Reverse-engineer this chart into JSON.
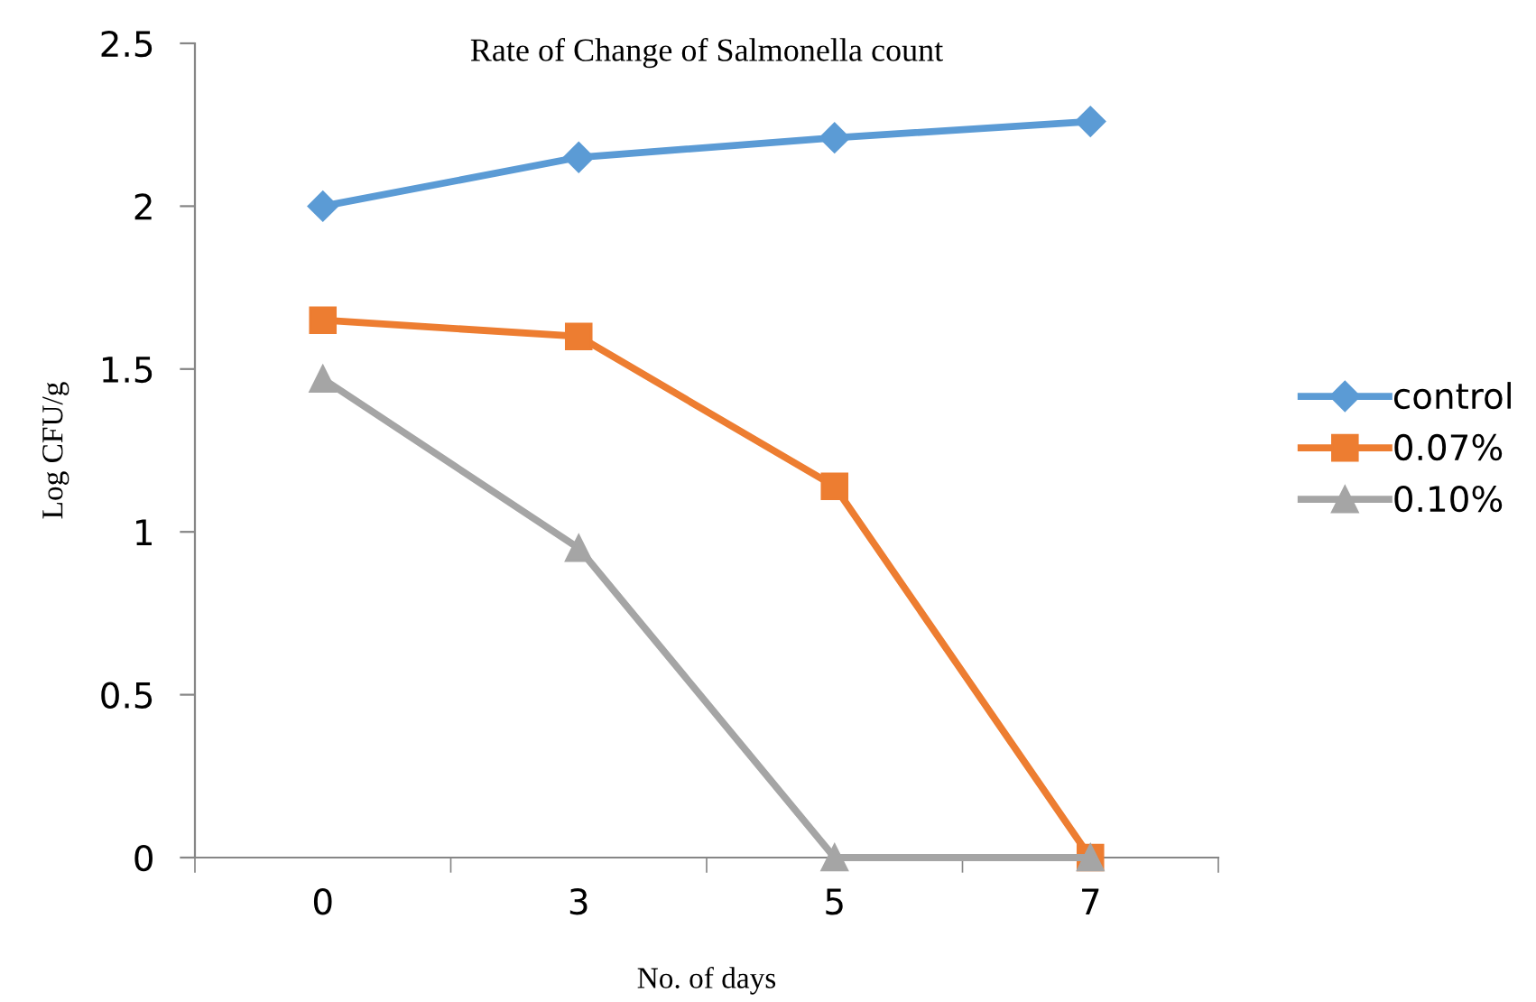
{
  "chart_data": {
    "type": "line",
    "title": "Rate of Change of Salmonella count",
    "xlabel": "No. of days",
    "ylabel": "Log CFU/g",
    "categories": [
      "0",
      "3",
      "5",
      "7"
    ],
    "series": [
      {
        "name": "control",
        "color": "#5b9bd5",
        "marker": "diamond",
        "values": [
          2.0,
          2.15,
          2.21,
          2.26
        ]
      },
      {
        "name": "0.07%",
        "color": "#ed7d31",
        "marker": "square",
        "values": [
          1.65,
          1.6,
          1.14,
          0
        ]
      },
      {
        "name": "0.10%",
        "color": "#a5a5a5",
        "marker": "triangle",
        "values": [
          1.47,
          0.95,
          0,
          0
        ]
      }
    ],
    "ylim": [
      0,
      2.5
    ],
    "yticks": [
      0,
      0.5,
      1,
      1.5,
      2,
      2.5
    ],
    "grid": false,
    "legend": "right",
    "line_style": "solid"
  }
}
